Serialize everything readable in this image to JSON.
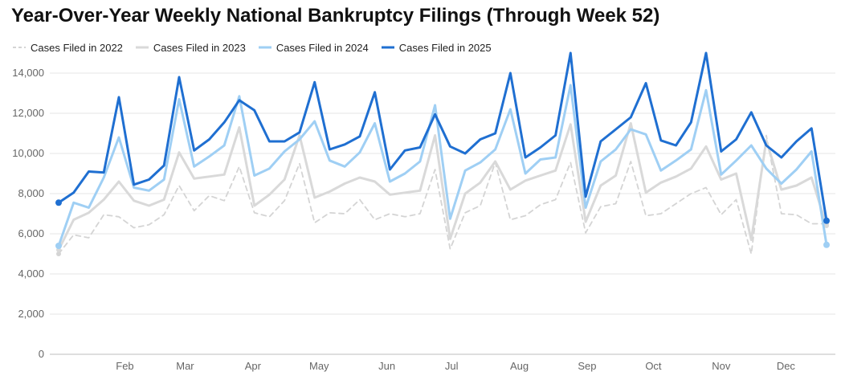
{
  "chart_data": {
    "type": "line",
    "title": "Year-Over-Year Weekly National Bankruptcy Filings (Through Week 52)",
    "xlabel": "",
    "ylabel": "",
    "ylim": [
      0,
      15000
    ],
    "y_ticks": [
      0,
      2000,
      4000,
      6000,
      8000,
      10000,
      12000,
      14000
    ],
    "y_tick_labels": [
      "0",
      "2,000",
      "4,000",
      "6,000",
      "8,000",
      "10,000",
      "12,000",
      "14,000"
    ],
    "x_tick_labels": [
      "Feb",
      "Mar",
      "Apr",
      "May",
      "Jun",
      "Jul",
      "Aug",
      "Sep",
      "Oct",
      "Nov",
      "Dec"
    ],
    "x_tick_positions_week": [
      5.4,
      9.4,
      13.9,
      18.3,
      22.8,
      27.1,
      31.6,
      36.1,
      40.5,
      45,
      49.3
    ],
    "x": [
      1,
      2,
      3,
      4,
      5,
      6,
      7,
      8,
      9,
      10,
      11,
      12,
      13,
      14,
      15,
      16,
      17,
      18,
      19,
      20,
      21,
      22,
      23,
      24,
      25,
      26,
      27,
      28,
      29,
      30,
      31,
      32,
      33,
      34,
      35,
      36,
      37,
      38,
      39,
      40,
      41,
      42,
      43,
      44,
      45,
      46,
      47,
      48,
      49,
      50,
      51,
      52
    ],
    "legend_position": "top-left",
    "grid": true,
    "series": [
      {
        "name": "Cases Filed in 2022",
        "color": "#d4d4d4",
        "style": "dashed",
        "values": [
          5000,
          5950,
          5800,
          6950,
          6850,
          6300,
          6450,
          6950,
          8400,
          7150,
          7900,
          7650,
          9350,
          7050,
          6850,
          7650,
          9500,
          6550,
          7050,
          7000,
          7700,
          6700,
          7000,
          6850,
          7000,
          9200,
          5250,
          7050,
          7400,
          9550,
          6700,
          6900,
          7450,
          7700,
          9550,
          6050,
          7350,
          7500,
          9600,
          6900,
          7000,
          7500,
          8000,
          8300,
          6950,
          7700,
          5000,
          10900,
          7000,
          6950,
          6500,
          6500
        ]
      },
      {
        "name": "Cases Filed in 2023",
        "color": "#d9d9d9",
        "style": "solid",
        "values": [
          5200,
          6700,
          7050,
          7700,
          8600,
          7650,
          7400,
          7700,
          10050,
          8750,
          8850,
          8950,
          11300,
          7400,
          7950,
          8700,
          10900,
          7800,
          8100,
          8500,
          8800,
          8600,
          7950,
          8050,
          8150,
          10900,
          5750,
          8000,
          8550,
          9600,
          8200,
          8650,
          8900,
          9150,
          11450,
          6600,
          8400,
          8900,
          11500,
          8050,
          8550,
          8850,
          9250,
          10350,
          8700,
          9000,
          5700,
          10650,
          8200,
          8400,
          8800,
          6400
        ]
      },
      {
        "name": "Cases Filed in 2024",
        "color": "#9fcff4",
        "style": "solid",
        "values": [
          5400,
          7550,
          7300,
          8800,
          10800,
          8300,
          8150,
          8700,
          12700,
          9350,
          9850,
          10400,
          12850,
          8900,
          9250,
          10100,
          10700,
          11600,
          9650,
          9350,
          10050,
          11500,
          8600,
          9000,
          9600,
          12400,
          6750,
          9150,
          9550,
          10200,
          12200,
          9000,
          9700,
          9800,
          13400,
          7300,
          9600,
          10200,
          11200,
          10950,
          9150,
          9650,
          10200,
          13150,
          8950,
          9650,
          10400,
          9250,
          8500,
          9200,
          10100,
          5450
        ]
      },
      {
        "name": "Cases Filed in 2025",
        "color": "#1f6fd1",
        "style": "solid",
        "values": [
          7550,
          8050,
          9100,
          9050,
          12800,
          8450,
          8700,
          9400,
          13800,
          10150,
          10700,
          11550,
          12650,
          12150,
          10600,
          10600,
          11050,
          13550,
          10200,
          10450,
          10850,
          13050,
          9200,
          10150,
          10300,
          11950,
          10350,
          10000,
          10700,
          11000,
          14000,
          9800,
          10300,
          10900,
          15000,
          7850,
          10600,
          11200,
          11800,
          13500,
          10650,
          10400,
          11550,
          15000,
          10100,
          10700,
          12050,
          10400,
          9800,
          10600,
          11250,
          6650
        ]
      }
    ]
  }
}
